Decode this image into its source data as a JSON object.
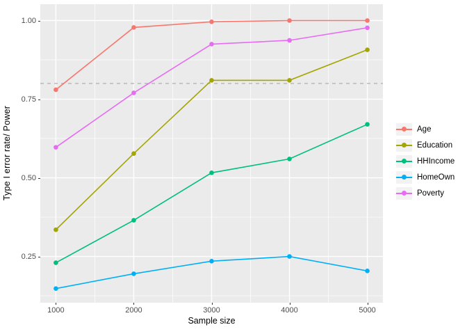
{
  "chart_data": {
    "type": "line",
    "title": "",
    "xlabel": "Sample size",
    "ylabel": "Type I error rate/ Power",
    "x": [
      1000,
      2000,
      3000,
      4000,
      5000
    ],
    "series": [
      {
        "name": "Age",
        "color": "#F8766D",
        "values": [
          0.78,
          0.978,
          0.996,
          1.0,
          1.0
        ]
      },
      {
        "name": "Education",
        "color": "#A3A500",
        "values": [
          0.335,
          0.577,
          0.81,
          0.81,
          0.907
        ]
      },
      {
        "name": "HHIncome",
        "color": "#00BF7D",
        "values": [
          0.23,
          0.365,
          0.516,
          0.56,
          0.67
        ]
      },
      {
        "name": "HomeOwn",
        "color": "#00B0F6",
        "values": [
          0.148,
          0.195,
          0.235,
          0.25,
          0.204
        ]
      },
      {
        "name": "Poverty",
        "color": "#E76BF3",
        "values": [
          0.597,
          0.77,
          0.925,
          0.937,
          0.977
        ]
      }
    ],
    "x_ticks": [
      {
        "label": "1000",
        "value": 1000
      },
      {
        "label": "2000",
        "value": 2000
      },
      {
        "label": "3000",
        "value": 3000
      },
      {
        "label": "4000",
        "value": 4000
      },
      {
        "label": "5000",
        "value": 5000
      }
    ],
    "y_ticks": [
      {
        "label": "0.25",
        "value": 0.25
      },
      {
        "label": "0.50",
        "value": 0.5
      },
      {
        "label": "0.75",
        "value": 0.75
      },
      {
        "label": "1.00",
        "value": 1.0
      }
    ],
    "x_minor": [
      1500,
      2500,
      3500,
      4500
    ],
    "y_minor": [
      0.125,
      0.375,
      0.625,
      0.875
    ],
    "x_domain": [
      800,
      5200
    ],
    "y_domain": [
      0.103,
      1.052
    ],
    "reference_line": {
      "value": 0.8,
      "style": "dashed",
      "color": "#A8A8A8"
    },
    "legend_position": "right",
    "grid": true,
    "colors": {
      "panel_bg": "#EBEBEB",
      "grid_major": "#FFFFFF",
      "grid_minor": "#FFFFFF",
      "tick_text": "#4D4D4D",
      "legend_key_bg": "#F2F2F2"
    }
  }
}
